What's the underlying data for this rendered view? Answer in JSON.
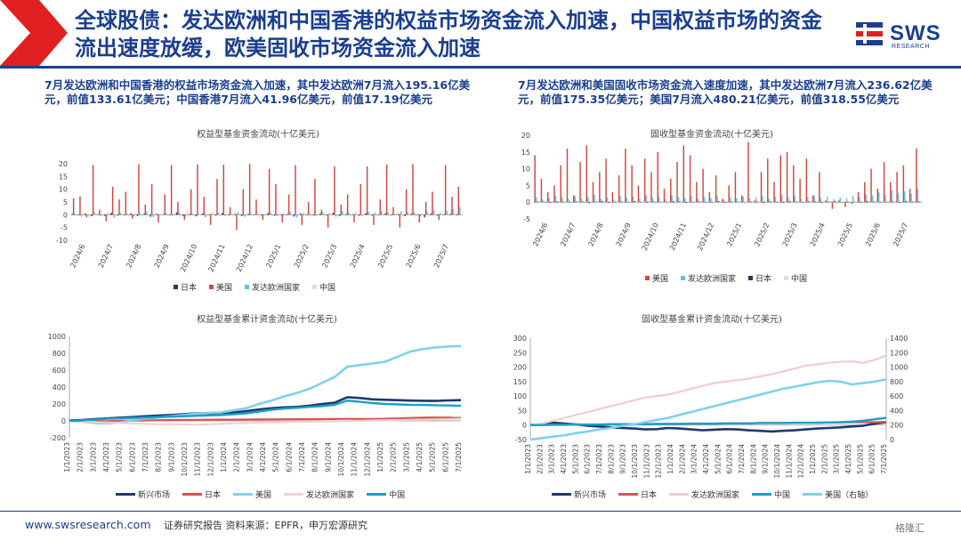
{
  "header": {
    "title": "全球股债：发达欧洲和中国香港的权益市场资金流入加速，中国权益市场的资金流出速度放缓，欧美固收市场资金流入加速",
    "logo_text": "SWS",
    "logo_sub": "RESEARCH",
    "accent_color": "#1b3f8f",
    "chevron_color": "#e02020"
  },
  "notes": {
    "left": "7月发达欧洲和中国香港的权益市场资金流入加速，其中发达欧洲7月流入195.16亿美元，前值133.61亿美元；中国香港7月流入41.96亿美元，前值17.19亿美元",
    "right": "7月发达欧洲和美国固收市场资金流入速度加速，其中发达欧洲7月流入236.62亿美元，前值175.35亿美元；美国7月流入480.21亿美元，前值318.55亿美元"
  },
  "footer": {
    "url": "www.swsresearch.com",
    "source": "证券研究报告   资料来源：EPFR，申万宏源研究",
    "watermark": "格隆汇"
  },
  "chart_data": [
    {
      "id": "equity-weekly",
      "type": "bar",
      "title": "权益型基金资金流动(十亿美元)",
      "ylim": [
        -10,
        20
      ],
      "yticks": [
        -10,
        -5,
        0,
        5,
        10,
        15,
        20
      ],
      "x_ticks": [
        "2024/6",
        "2024/7",
        "2024/8",
        "2024/9",
        "2024/10",
        "2024/11",
        "2024/12",
        "2025/1",
        "2025/2",
        "2025/3",
        "2025/4",
        "2025/5",
        "2025/6",
        "2025/7"
      ],
      "legend_position": "bottom",
      "series": [
        {
          "name": "日本",
          "color": "#1f3a6b",
          "values": [
            0.3,
            -0.2,
            0.5,
            -0.6,
            0.2,
            -0.4,
            0.8,
            -0.3,
            0.1,
            0.6,
            -0.5,
            0.3,
            -0.8,
            0.4,
            0.2,
            -0.2,
            0.9,
            -0.4,
            0.3,
            -0.6,
            0.5,
            0.2,
            -0.3,
            0.7,
            -0.2,
            0.4,
            -0.5,
            0.3,
            0.1,
            -0.2,
            0.6,
            -0.4,
            0.2,
            0.3,
            -0.7,
            0.5,
            0.1,
            -0.3,
            0.4,
            -0.2,
            0.8,
            -0.5,
            0.3,
            0.2,
            -0.4,
            0.6,
            -0.3,
            0.1,
            0.5,
            -0.2,
            0.3,
            -0.6,
            0.4,
            0.2,
            -1.0,
            0.5,
            -0.3,
            0.2,
            0.4,
            -0.2
          ]
        },
        {
          "name": "美国",
          "color": "#d0483f",
          "values": [
            6.5,
            7.2,
            -1.0,
            19.5,
            2.0,
            -2.5,
            11.0,
            6.0,
            9.0,
            -1.5,
            19.8,
            4.0,
            12.0,
            -3.0,
            8.0,
            19.5,
            5.0,
            -2.0,
            10.0,
            19.7,
            7.0,
            -4.0,
            14.0,
            19.6,
            3.0,
            -6.0,
            10.0,
            19.9,
            6.0,
            -2.0,
            18.0,
            12.0,
            -3.0,
            8.0,
            19.5,
            -4.0,
            5.0,
            14.0,
            2.0,
            -5.0,
            19.0,
            4.0,
            8.0,
            -3.0,
            12.0,
            19.0,
            -4.0,
            6.0,
            19.7,
            3.0,
            -5.0,
            10.0,
            19.8,
            -3.0,
            5.0,
            9.0,
            -2.0,
            19.5,
            7.0,
            11.0
          ]
        },
        {
          "name": "发达欧洲国家",
          "color": "#5fc3e2",
          "values": [
            0.5,
            -0.8,
            0.3,
            1.0,
            -0.5,
            0.6,
            -1.2,
            0.8,
            0.4,
            -0.6,
            0.5,
            1.2,
            -0.9,
            0.3,
            0.7,
            -0.4,
            1.0,
            -0.7,
            0.5,
            0.2,
            -1.0,
            0.6,
            0.8,
            -0.5,
            0.3,
            1.1,
            -0.8,
            0.4,
            0.6,
            -0.3,
            0.9,
            -0.6,
            0.5,
            1.3,
            -1.1,
            0.7,
            0.4,
            -0.5,
            1.0,
            0.6,
            -0.8,
            1.5,
            0.9,
            0.7,
            -0.4,
            1.2,
            0.8,
            1.6,
            1.0,
            -0.3,
            1.4,
            1.1,
            0.9,
            -0.6,
            1.3,
            1.8,
            0.8,
            1.5,
            2.2,
            3.0
          ]
        },
        {
          "name": "中国",
          "color": "#f0d8d8",
          "values": [
            -0.5,
            0.8,
            -1.0,
            0.5,
            -0.8,
            0.4,
            -1.2,
            0.6,
            -0.7,
            1.0,
            -0.9,
            0.3,
            -1.1,
            0.7,
            -0.4,
            0.9,
            -1.0,
            2.0,
            -0.6,
            0.5,
            -0.8,
            1.2,
            -0.5,
            0.4,
            -0.9,
            0.8,
            -0.6,
            0.5,
            -1.0,
            0.3,
            -0.7,
            0.6,
            -0.4,
            0.9,
            -0.8,
            0.5,
            -0.6,
            0.3,
            -0.9,
            0.7,
            -0.5,
            0.4,
            -0.8,
            0.6,
            -0.4,
            0.5,
            -0.7,
            0.3,
            -0.6,
            0.8,
            -0.5,
            0.4,
            -0.9,
            0.6,
            -0.3,
            0.5,
            -0.4,
            0.7,
            -0.2,
            0.4
          ]
        }
      ]
    },
    {
      "id": "bond-weekly",
      "type": "bar",
      "title": "固收型基金资金流动(十亿美元)",
      "ylim": [
        -5,
        20
      ],
      "yticks": [
        -5,
        0,
        5,
        10,
        15,
        20
      ],
      "x_ticks": [
        "2024/6",
        "2024/7",
        "2024/8",
        "2024/9",
        "2024/10",
        "2024/11",
        "2024/12",
        "2025/1",
        "2025/2",
        "2025/3",
        "2025/4",
        "2025/5",
        "2025/6",
        "2025/7"
      ],
      "legend_position": "bottom",
      "series": [
        {
          "name": "美国",
          "color": "#d0483f",
          "values": [
            14.0,
            7.0,
            3.0,
            5.0,
            11.0,
            16.0,
            2.0,
            12.0,
            17.0,
            6.0,
            9.0,
            13.0,
            3.0,
            8.0,
            16.0,
            11.0,
            5.0,
            13.0,
            9.0,
            15.0,
            4.0,
            7.0,
            12.0,
            17.0,
            14.0,
            6.0,
            10.0,
            3.0,
            8.0,
            1.0,
            5.0,
            9.0,
            2.0,
            18.0,
            0.5,
            9.0,
            13.0,
            6.0,
            14.0,
            15.0,
            11.0,
            7.0,
            13.0,
            2.0,
            9.0,
            0.5,
            -2.0,
            0.5,
            -1.5,
            -0.5,
            3.0,
            6.0,
            10.0,
            4.0,
            12.0,
            6.0,
            9.0,
            11.0,
            4.0,
            16.0
          ]
        },
        {
          "name": "发达欧洲国家",
          "color": "#5fc3e2",
          "values": [
            1.5,
            0.8,
            1.2,
            2.0,
            1.5,
            0.9,
            1.8,
            1.1,
            1.6,
            2.2,
            1.0,
            1.4,
            0.8,
            1.9,
            1.3,
            1.7,
            1.1,
            2.1,
            1.4,
            1.6,
            0.9,
            2.0,
            1.5,
            1.2,
            1.8,
            1.0,
            1.6,
            1.3,
            2.0,
            0.8,
            1.5,
            1.2,
            1.7,
            1.1,
            1.4,
            1.9,
            1.0,
            1.6,
            2.2,
            1.3,
            1.8,
            1.0,
            1.5,
            2.0,
            1.2,
            1.7,
            0.9,
            1.4,
            1.1,
            1.9,
            1.6,
            2.4,
            2.0,
            3.0,
            2.2,
            3.5,
            2.8,
            3.2,
            2.6,
            4.0
          ]
        },
        {
          "name": "日本",
          "color": "#1f3a6b",
          "values": [
            0.2,
            0.1,
            -0.2,
            0.3,
            0.1,
            -0.1,
            0.2,
            0.2,
            -0.3,
            0.1,
            0.3,
            -0.2,
            0.1,
            0.2,
            -0.1,
            0.3,
            0.1,
            -0.2,
            0.2,
            0.1,
            -0.1,
            0.3,
            0.2,
            -0.2,
            0.1,
            0.2,
            -0.1,
            0.1,
            0.3,
            -0.2,
            0.2,
            0.1,
            -0.1,
            0.2,
            0.1,
            -0.3,
            0.2,
            0.1,
            -0.2,
            0.3,
            0.1,
            -0.1,
            0.2,
            0.2,
            -0.2,
            0.1,
            0.3,
            -0.1,
            0.2,
            0.1,
            -0.2,
            0.3,
            0.2,
            -0.1,
            0.1,
            0.2,
            -0.2,
            0.3,
            0.1,
            0.2
          ]
        },
        {
          "name": "中国",
          "color": "#f0d8d8",
          "values": [
            -0.3,
            0.5,
            -0.4,
            0.3,
            -0.2,
            0.6,
            -0.3,
            0.4,
            -0.5,
            0.2,
            -0.3,
            0.5,
            -0.4,
            0.3,
            -0.2,
            0.4,
            -0.3,
            0.5,
            -0.6,
            0.2,
            -0.3,
            0.4,
            -0.2,
            0.3,
            -0.4,
            0.5,
            -0.3,
            0.2,
            -0.5,
            0.4,
            -0.2,
            0.3,
            -0.4,
            0.2,
            -0.3,
            0.5,
            -0.2,
            0.4,
            -0.3,
            0.2,
            -0.5,
            0.3,
            -0.2,
            0.4,
            -0.3,
            0.5,
            -0.2,
            0.3,
            -0.4,
            0.2,
            -0.3,
            0.4,
            -0.2,
            0.3,
            -0.5,
            0.2,
            -0.3,
            0.4,
            -0.2,
            0.3
          ]
        }
      ]
    },
    {
      "id": "equity-cumulative",
      "type": "line",
      "title": "权益型基金累计资金流动(十亿美元)",
      "ylim": [
        -200,
        1000
      ],
      "yticks": [
        -200,
        0,
        200,
        400,
        600,
        800,
        1000
      ],
      "x_ticks": [
        "1/1/2023",
        "2/1/2023",
        "3/1/2023",
        "4/1/2023",
        "5/1/2023",
        "6/1/2023",
        "7/1/2023",
        "8/1/2023",
        "9/1/2023",
        "10/1/2023",
        "11/1/2023",
        "12/1/2023",
        "1/1/2024",
        "2/1/2024",
        "3/1/2024",
        "4/1/2024",
        "5/1/2024",
        "6/1/2024",
        "7/1/2024",
        "8/1/2024",
        "9/1/2024",
        "10/1/2024",
        "11/1/2024",
        "12/1/2024",
        "1/1/2025",
        "2/1/2025",
        "3/1/2025",
        "4/1/2025",
        "5/1/2025",
        "6/1/2025",
        "7/1/2025"
      ],
      "legend_position": "bottom",
      "series": [
        {
          "name": "新兴市场",
          "color": "#1f3a6b",
          "width": 2.6,
          "values": [
            5,
            10,
            20,
            30,
            38,
            45,
            55,
            62,
            70,
            78,
            88,
            92,
            95,
            100,
            115,
            135,
            150,
            160,
            165,
            180,
            200,
            215,
            280,
            270,
            255,
            250,
            245,
            240,
            238,
            236,
            242,
            245
          ]
        },
        {
          "name": "日本",
          "color": "#d9534f",
          "width": 2.2,
          "values": [
            0,
            -2,
            -4,
            -3,
            0,
            3,
            5,
            8,
            10,
            12,
            13,
            14,
            15,
            15,
            16,
            17,
            18,
            19,
            20,
            20,
            21,
            22,
            24,
            23,
            22,
            25,
            30,
            35,
            38,
            40,
            38,
            35
          ]
        },
        {
          "name": "美国",
          "color": "#7fd0ec",
          "width": 2.6,
          "values": [
            0,
            -10,
            -25,
            -30,
            -20,
            10,
            25,
            40,
            55,
            70,
            85,
            95,
            100,
            125,
            150,
            200,
            240,
            290,
            330,
            380,
            450,
            520,
            640,
            660,
            680,
            700,
            760,
            820,
            850,
            870,
            880,
            885
          ]
        },
        {
          "name": "发达欧洲国家",
          "color": "#f2d0d0",
          "width": 2.2,
          "values": [
            0,
            -8,
            -15,
            -20,
            -25,
            -30,
            -35,
            -40,
            -38,
            -42,
            -45,
            -40,
            -35,
            -30,
            -25,
            -20,
            -18,
            -15,
            -12,
            -10,
            -8,
            -5,
            -3,
            0,
            5,
            8,
            10,
            12,
            15,
            18,
            20,
            25
          ]
        },
        {
          "name": "中国",
          "color": "#1aa0c8",
          "width": 2.4,
          "values": [
            0,
            5,
            15,
            25,
            30,
            35,
            40,
            45,
            50,
            55,
            60,
            65,
            70,
            78,
            90,
            110,
            130,
            145,
            155,
            165,
            175,
            190,
            240,
            225,
            210,
            200,
            195,
            190,
            188,
            185,
            182,
            178
          ]
        }
      ]
    },
    {
      "id": "bond-cumulative",
      "type": "line",
      "title": "固收型基金累计资金流动(十亿美元)",
      "ylim": [
        -50,
        300
      ],
      "yticks": [
        -50,
        0,
        50,
        100,
        150,
        200,
        250,
        300
      ],
      "y2lim": [
        0,
        1400
      ],
      "y2ticks": [
        0,
        200,
        400,
        600,
        800,
        1000,
        1200,
        1400
      ],
      "x_ticks": [
        "1/1/2023",
        "2/1/2023",
        "3/1/2023",
        "4/1/2023",
        "5/1/2023",
        "6/1/2023",
        "7/1/2023",
        "8/1/2023",
        "9/1/2023",
        "10/1/2023",
        "11/1/2023",
        "12/1/2023",
        "1/1/2024",
        "2/1/2024",
        "3/1/2024",
        "4/1/2024",
        "5/1/2024",
        "6/1/2024",
        "7/1/2024",
        "8/1/2024",
        "9/1/2024",
        "10/1/2024",
        "11/1/2024",
        "12/1/2024",
        "1/1/2025",
        "2/1/2025",
        "3/1/2025",
        "4/1/2025",
        "5/1/2025",
        "6/1/2025",
        "7/1/2025"
      ],
      "legend_position": "bottom",
      "series": [
        {
          "name": "新兴市场",
          "color": "#1f3a6b",
          "width": 2.6,
          "axis": "left",
          "values": [
            0,
            2,
            8,
            5,
            2,
            -2,
            -5,
            -8,
            -10,
            -12,
            -15,
            -14,
            -10,
            -12,
            -15,
            -18,
            -16,
            -14,
            -15,
            -18,
            -20,
            -22,
            -20,
            -18,
            -15,
            -12,
            -10,
            -8,
            -5,
            -2,
            5,
            10
          ]
        },
        {
          "name": "日本",
          "color": "#d9534f",
          "width": 2.2,
          "axis": "left",
          "values": [
            0,
            0,
            1,
            1,
            1,
            2,
            2,
            2,
            3,
            3,
            3,
            4,
            4,
            4,
            5,
            5,
            5,
            6,
            6,
            6,
            7,
            7,
            7,
            8,
            8,
            8,
            9,
            9,
            10,
            10,
            10,
            11
          ]
        },
        {
          "name": "发达欧洲国家",
          "color": "#f2cccc",
          "width": 2.2,
          "axis": "left",
          "values": [
            0,
            5,
            15,
            25,
            35,
            45,
            55,
            65,
            75,
            85,
            95,
            100,
            105,
            115,
            125,
            135,
            145,
            150,
            155,
            160,
            168,
            175,
            185,
            195,
            205,
            210,
            215,
            218,
            220,
            215,
            225,
            240
          ]
        },
        {
          "name": "中国",
          "color": "#1aa0c8",
          "width": 2.4,
          "axis": "left",
          "values": [
            0,
            0,
            1,
            1,
            2,
            2,
            2,
            3,
            3,
            3,
            3,
            4,
            4,
            4,
            5,
            5,
            5,
            6,
            6,
            6,
            7,
            7,
            7,
            8,
            8,
            8,
            9,
            10,
            12,
            15,
            20,
            25
          ]
        },
        {
          "name": "美国（右轴）",
          "color": "#7fd0ec",
          "width": 2.6,
          "axis": "right",
          "values": [
            0,
            20,
            40,
            60,
            90,
            110,
            140,
            160,
            190,
            210,
            240,
            270,
            300,
            340,
            380,
            420,
            460,
            500,
            540,
            580,
            620,
            660,
            700,
            730,
            760,
            790,
            810,
            800,
            760,
            780,
            800,
            830
          ]
        }
      ]
    }
  ]
}
